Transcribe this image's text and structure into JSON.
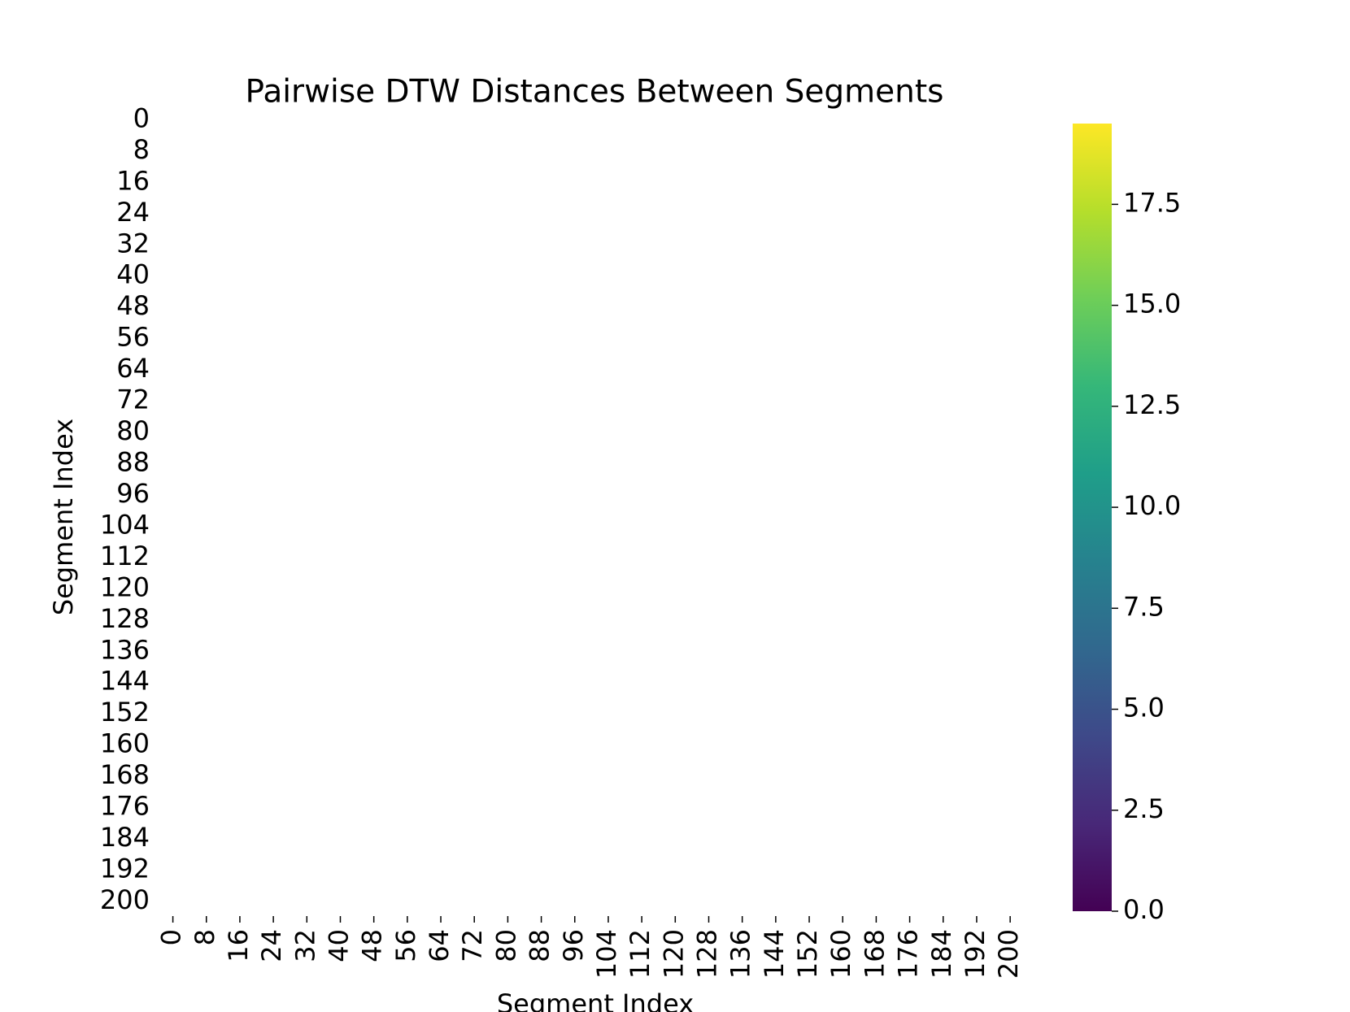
{
  "chart_data": {
    "type": "heatmap",
    "title": "Pairwise DTW Distances Between Segments",
    "x_label": "Segment Index",
    "y_label": "Segment Index",
    "xlim": [
      0,
      203
    ],
    "ylim": [
      0,
      203
    ],
    "xticks": [
      0,
      8,
      16,
      24,
      32,
      40,
      48,
      56,
      64,
      72,
      80,
      88,
      96,
      104,
      112,
      120,
      128,
      136,
      144,
      152,
      160,
      168,
      176,
      184,
      192,
      200
    ],
    "yticks": [
      0,
      8,
      16,
      24,
      32,
      40,
      48,
      56,
      64,
      72,
      80,
      88,
      96,
      104,
      112,
      120,
      128,
      136,
      144,
      152,
      160,
      168,
      176,
      184,
      192,
      200
    ],
    "colormap": [
      "#440154",
      "#482878",
      "#3e4989",
      "#31688e",
      "#26828e",
      "#1f9e89",
      "#35b779",
      "#6ece58",
      "#b5de2b",
      "#fde725"
    ],
    "clim": [
      0,
      19.5
    ],
    "colorbar_ticks": [
      {
        "value": 0,
        "label": "0.0"
      },
      {
        "value": 2.5,
        "label": "2.5"
      },
      {
        "value": 5,
        "label": "5.0"
      },
      {
        "value": 7.5,
        "label": "7.5"
      },
      {
        "value": 10,
        "label": "10.0"
      },
      {
        "value": 12.5,
        "label": "12.5"
      },
      {
        "value": 15,
        "label": "15.0"
      },
      {
        "value": 17.5,
        "label": "17.5"
      }
    ]
  }
}
